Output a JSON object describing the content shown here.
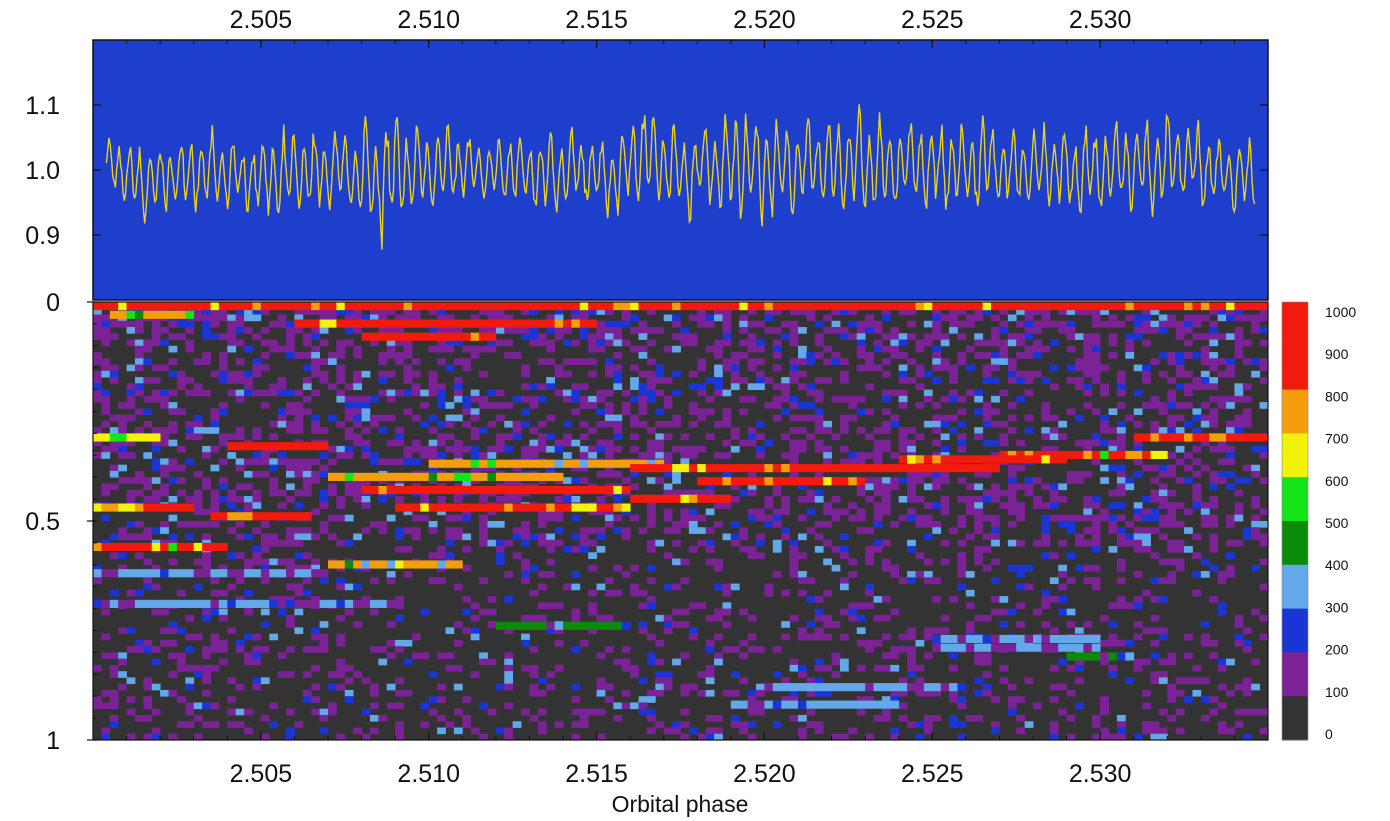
{
  "chart_data": [
    {
      "type": "line",
      "panel": "light-curve",
      "xlim": [
        2.5,
        2.535
      ],
      "ylim": [
        0.8,
        1.2
      ],
      "x_ticks": [
        "2.505",
        "2.510",
        "2.515",
        "2.520",
        "2.525",
        "2.530"
      ],
      "y_ticks": [
        "0.9",
        "1.0",
        "1.1"
      ],
      "y_tick_values": [
        0.9,
        1.0,
        1.1
      ],
      "x_tick_values": [
        2.505,
        2.51,
        2.515,
        2.52,
        2.525,
        2.53
      ],
      "x_tick_position": "top",
      "background_color": "#1E3FCC",
      "line_color": "#E8D21E",
      "series": [
        {
          "x": [
            2.5005,
            2.5015,
            2.5025,
            2.5035,
            2.5045,
            2.5055,
            2.5065,
            2.5075,
            2.5085,
            2.5095,
            2.5105,
            2.5115,
            2.5125,
            2.5135,
            2.5145,
            2.5155,
            2.5165,
            2.5175,
            2.5185,
            2.5195,
            2.5205,
            2.5215,
            2.5225,
            2.5235,
            2.5245,
            2.5255,
            2.5265,
            2.5275,
            2.5285,
            2.5295,
            2.5305,
            2.5315,
            2.5325,
            2.5335,
            2.5345
          ],
          "envelope_max": [
            1.06,
            1.05,
            1.06,
            1.07,
            1.06,
            1.07,
            1.08,
            1.08,
            1.12,
            1.09,
            1.09,
            1.05,
            1.08,
            1.07,
            1.07,
            1.06,
            1.13,
            1.08,
            1.09,
            1.13,
            1.09,
            1.1,
            1.11,
            1.1,
            1.09,
            1.08,
            1.09,
            1.08,
            1.09,
            1.08,
            1.09,
            1.09,
            1.1,
            1.06,
            1.06
          ],
          "envelope_min": [
            0.96,
            0.9,
            0.93,
            0.92,
            0.92,
            0.91,
            0.91,
            0.92,
            0.85,
            0.91,
            0.92,
            0.95,
            0.92,
            0.91,
            0.93,
            0.92,
            0.93,
            0.91,
            0.92,
            0.89,
            0.91,
            0.92,
            0.91,
            0.9,
            0.93,
            0.93,
            0.92,
            0.93,
            0.92,
            0.91,
            0.92,
            0.92,
            0.93,
            0.93,
            0.91
          ]
        }
      ]
    },
    {
      "type": "heatmap",
      "panel": "dynamic-power-spectrum",
      "xlabel": "Orbital phase",
      "xlim": [
        2.5,
        2.535
      ],
      "ylim": [
        0,
        1
      ],
      "x_ticks": [
        "2.505",
        "2.510",
        "2.515",
        "2.520",
        "2.525",
        "2.530"
      ],
      "x_tick_values": [
        2.505,
        2.51,
        2.515,
        2.52,
        2.525,
        2.53
      ],
      "y_ticks": [
        "0",
        "0.5",
        "1"
      ],
      "y_tick_values": [
        0,
        0.5,
        1
      ],
      "y_inverted": true,
      "color_scale": {
        "labels": [
          "0",
          "100",
          "200",
          "300",
          "400",
          "500",
          "600",
          "700",
          "800",
          "900",
          "1000"
        ],
        "colors": [
          "#333333",
          "#7B2396",
          "#1A34D6",
          "#63A8E8",
          "#0A8C0A",
          "#14E514",
          "#F2F20C",
          "#F59E0C",
          "#F21A0C",
          "#F21A0C"
        ]
      },
      "bands": [
        {
          "y": 0.0,
          "x0": 2.5,
          "x1": 2.535,
          "level": 1000
        },
        {
          "y": 0.02,
          "x0": 2.5005,
          "x1": 2.503,
          "level": 700
        },
        {
          "y": 0.04,
          "x0": 2.506,
          "x1": 2.515,
          "level": 1000
        },
        {
          "y": 0.07,
          "x0": 2.508,
          "x1": 2.512,
          "level": 1000
        },
        {
          "y": 0.3,
          "x0": 2.5,
          "x1": 2.502,
          "level": 600
        },
        {
          "y": 0.32,
          "x0": 2.504,
          "x1": 2.507,
          "level": 1000
        },
        {
          "y": 0.3,
          "x0": 2.531,
          "x1": 2.535,
          "level": 1000
        },
        {
          "y": 0.34,
          "x0": 2.527,
          "x1": 2.532,
          "level": 900
        },
        {
          "y": 0.35,
          "x0": 2.524,
          "x1": 2.529,
          "level": 1000
        },
        {
          "y": 0.36,
          "x0": 2.51,
          "x1": 2.517,
          "level": 700
        },
        {
          "y": 0.37,
          "x0": 2.516,
          "x1": 2.522,
          "level": 1000
        },
        {
          "y": 0.37,
          "x0": 2.522,
          "x1": 2.527,
          "level": 1000
        },
        {
          "y": 0.39,
          "x0": 2.507,
          "x1": 2.514,
          "level": 700
        },
        {
          "y": 0.4,
          "x0": 2.518,
          "x1": 2.523,
          "level": 1000
        },
        {
          "y": 0.42,
          "x0": 2.508,
          "x1": 2.516,
          "level": 1000
        },
        {
          "y": 0.44,
          "x0": 2.516,
          "x1": 2.519,
          "level": 1000
        },
        {
          "y": 0.46,
          "x0": 2.5,
          "x1": 2.503,
          "level": 1000
        },
        {
          "y": 0.46,
          "x0": 2.509,
          "x1": 2.516,
          "level": 1000
        },
        {
          "y": 0.48,
          "x0": 2.5035,
          "x1": 2.5065,
          "level": 1000
        },
        {
          "y": 0.55,
          "x0": 2.5,
          "x1": 2.504,
          "level": 900
        },
        {
          "y": 0.59,
          "x0": 2.507,
          "x1": 2.511,
          "level": 700
        },
        {
          "y": 0.61,
          "x0": 2.5,
          "x1": 2.507,
          "level": 300
        },
        {
          "y": 0.68,
          "x0": 2.5,
          "x1": 2.509,
          "level": 300
        },
        {
          "y": 0.73,
          "x0": 2.512,
          "x1": 2.516,
          "level": 400
        },
        {
          "y": 0.76,
          "x0": 2.525,
          "x1": 2.53,
          "level": 300
        },
        {
          "y": 0.78,
          "x0": 2.525,
          "x1": 2.53,
          "level": 300
        },
        {
          "y": 0.8,
          "x0": 2.529,
          "x1": 2.531,
          "level": 400
        },
        {
          "y": 0.87,
          "x0": 2.52,
          "x1": 2.526,
          "level": 300
        },
        {
          "y": 0.91,
          "x0": 2.519,
          "x1": 2.524,
          "level": 300
        }
      ]
    }
  ]
}
